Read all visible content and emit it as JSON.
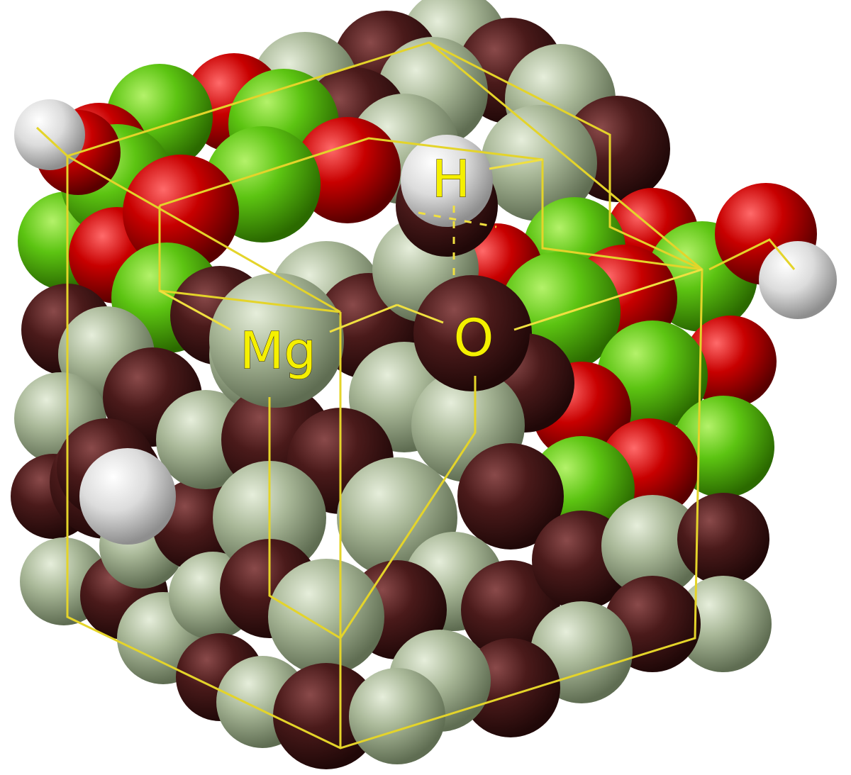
{
  "labels": {
    "mg": "Mg",
    "o": "O",
    "h": "H"
  },
  "colors": {
    "mg_surface": "#a6b595",
    "o_surface": "#4a1c1c",
    "mg_doped_green": "#5fc412",
    "o_red": "#c00000",
    "h_white": "#e8e8e8",
    "label_yellow": "#f5f000",
    "cell_line": "#e4d42a"
  }
}
